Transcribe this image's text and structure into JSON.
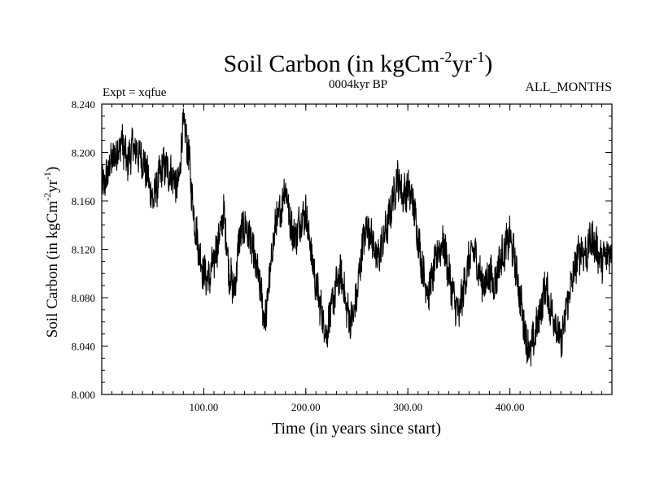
{
  "chart_data": {
    "type": "line",
    "title": "Soil Carbon (in kgCm",
    "title_sup1": "-2",
    "title_mid": "yr",
    "title_sup2": "-1",
    "title_end": ")",
    "experiment_label": "Expt = xqfue",
    "period_label": "0004kyr BP",
    "months_label": "ALL_MONTHS",
    "xlabel": "Time (in years since start)",
    "ylabel": "Soil Carbon (in kgCm",
    "ylabel_sup1": "-2",
    "ylabel_mid": "yr",
    "ylabel_sup2": "-1",
    "ylabel_end": ")",
    "xlim": [
      0,
      500
    ],
    "ylim": [
      8.0,
      8.24
    ],
    "x_ticks": [
      100,
      200,
      300,
      400
    ],
    "x_tick_labels": [
      "100.00",
      "200.00",
      "300.00",
      "400.00"
    ],
    "y_ticks": [
      8.0,
      8.04,
      8.08,
      8.12,
      8.16,
      8.2,
      8.24
    ],
    "y_tick_labels": [
      "8.000",
      "8.040",
      "8.080",
      "8.120",
      "8.160",
      "8.200",
      "8.240"
    ],
    "line_color": "#000000",
    "series": [
      {
        "name": "Soil Carbon",
        "x": [
          0,
          5,
          10,
          15,
          20,
          25,
          30,
          35,
          40,
          45,
          50,
          55,
          60,
          65,
          70,
          75,
          80,
          85,
          90,
          95,
          100,
          105,
          110,
          115,
          120,
          125,
          130,
          135,
          140,
          145,
          150,
          155,
          160,
          165,
          170,
          175,
          180,
          185,
          190,
          195,
          200,
          205,
          210,
          215,
          220,
          225,
          230,
          235,
          240,
          245,
          250,
          255,
          260,
          265,
          270,
          275,
          280,
          285,
          290,
          295,
          300,
          305,
          310,
          315,
          320,
          325,
          330,
          335,
          340,
          345,
          350,
          355,
          360,
          365,
          370,
          375,
          380,
          385,
          390,
          395,
          400,
          405,
          410,
          415,
          420,
          425,
          430,
          435,
          440,
          445,
          450,
          455,
          460,
          465,
          470,
          475,
          480,
          485,
          490,
          495,
          500
        ],
        "values": [
          8.17,
          8.18,
          8.195,
          8.2,
          8.21,
          8.19,
          8.205,
          8.2,
          8.195,
          8.18,
          8.16,
          8.175,
          8.19,
          8.185,
          8.18,
          8.17,
          8.225,
          8.2,
          8.15,
          8.12,
          8.1,
          8.095,
          8.11,
          8.13,
          8.15,
          8.1,
          8.085,
          8.13,
          8.14,
          8.13,
          8.11,
          8.09,
          8.06,
          8.1,
          8.14,
          8.15,
          8.175,
          8.14,
          8.13,
          8.145,
          8.15,
          8.12,
          8.09,
          8.07,
          8.05,
          8.07,
          8.09,
          8.1,
          8.07,
          8.06,
          8.08,
          8.12,
          8.14,
          8.13,
          8.11,
          8.125,
          8.14,
          8.16,
          8.18,
          8.165,
          8.17,
          8.16,
          8.13,
          8.1,
          8.085,
          8.1,
          8.12,
          8.125,
          8.1,
          8.08,
          8.065,
          8.09,
          8.11,
          8.12,
          8.1,
          8.09,
          8.1,
          8.09,
          8.11,
          8.12,
          8.13,
          8.11,
          8.08,
          8.05,
          8.035,
          8.05,
          8.07,
          8.09,
          8.07,
          8.06,
          8.04,
          8.07,
          8.09,
          8.11,
          8.12,
          8.115,
          8.13,
          8.12,
          8.11,
          8.115,
          8.12
        ]
      }
    ]
  }
}
